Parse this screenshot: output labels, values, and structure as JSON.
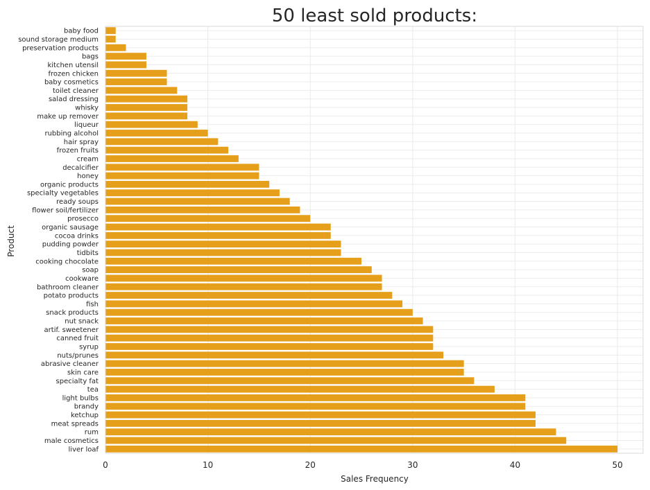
{
  "chart_data": {
    "type": "bar",
    "orientation": "horizontal",
    "title": "50 least sold products:",
    "xlabel": "Sales Frequency",
    "ylabel": "Product",
    "xlim": [
      0,
      52.5
    ],
    "xticks": [
      0,
      10,
      20,
      30,
      40,
      50
    ],
    "grid": true,
    "bar_color": "#E69F1A",
    "categories": [
      "baby food",
      "sound storage medium",
      "preservation products",
      "bags",
      "kitchen utensil",
      "frozen chicken",
      "baby cosmetics",
      "toilet cleaner",
      "salad dressing",
      "whisky",
      "make up remover",
      "liqueur",
      "rubbing alcohol",
      "hair spray",
      "frozen fruits",
      "cream",
      "decalcifier",
      "honey",
      "organic products",
      "specialty vegetables",
      "ready soups",
      "flower soil/fertilizer",
      "prosecco",
      "organic sausage",
      "cocoa drinks",
      "pudding powder",
      "tidbits",
      "cooking chocolate",
      "soap",
      "cookware",
      "bathroom cleaner",
      "potato products",
      "fish",
      "snack products",
      "nut snack",
      "artif. sweetener",
      "canned fruit",
      "syrup",
      "nuts/prunes",
      "abrasive cleaner",
      "skin care",
      "specialty fat",
      "tea",
      "light bulbs",
      "brandy",
      "ketchup",
      "meat spreads",
      "rum",
      "male cosmetics",
      "liver loaf"
    ],
    "values": [
      1,
      1,
      2,
      4,
      4,
      6,
      6,
      7,
      8,
      8,
      8,
      9,
      10,
      11,
      12,
      13,
      15,
      15,
      16,
      17,
      18,
      19,
      20,
      22,
      22,
      23,
      23,
      25,
      26,
      27,
      27,
      28,
      29,
      30,
      31,
      32,
      32,
      32,
      33,
      35,
      35,
      36,
      38,
      41,
      41,
      42,
      42,
      44,
      45,
      50
    ]
  }
}
